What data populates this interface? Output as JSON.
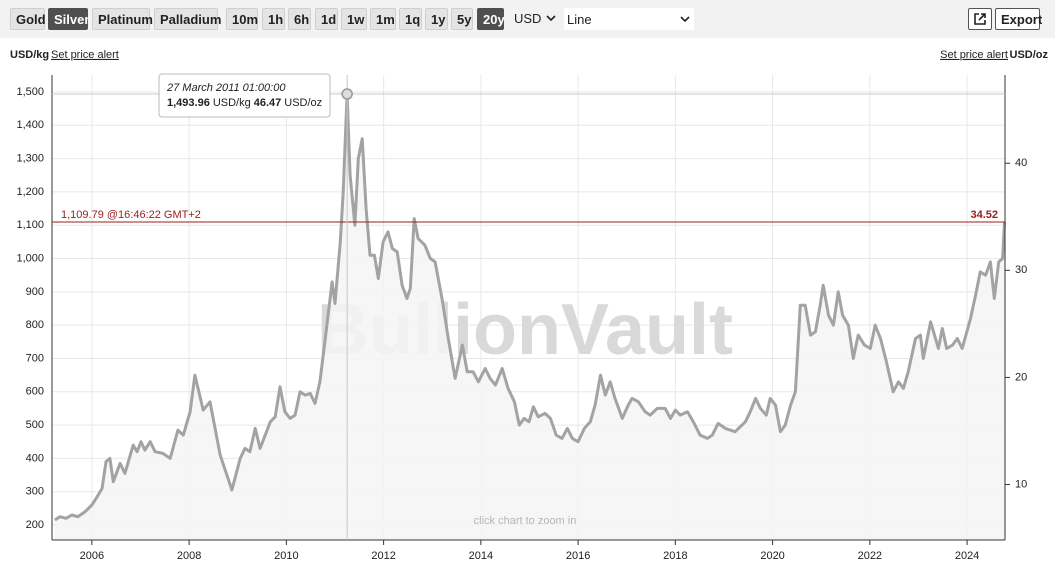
{
  "toolbar": {
    "metals": [
      "Gold",
      "Silver",
      "Platinum",
      "Palladium"
    ],
    "selected_metal": "Silver",
    "ranges": [
      "10m",
      "1h",
      "6h",
      "1d",
      "1w",
      "1m",
      "1q",
      "1y",
      "5y",
      "20y"
    ],
    "selected_range": "20y",
    "currency": "USD",
    "chart_style": "Line",
    "export": "Export"
  },
  "left_unit": "USD/kg",
  "right_unit": "USD/oz",
  "price_alert": "Set price alert",
  "chart_data": {
    "type": "line",
    "x": [
      2005.24,
      2005.34,
      2005.47,
      2005.59,
      2005.71,
      2005.86,
      2006.0,
      2006.11,
      2006.21,
      2006.29,
      2006.37,
      2006.44,
      2006.58,
      2006.68,
      2006.85,
      2006.93,
      2007.01,
      2007.09,
      2007.2,
      2007.3,
      2007.46,
      2007.61,
      2007.77,
      2007.88,
      2008.02,
      2008.12,
      2008.29,
      2008.43,
      2008.64,
      2008.88,
      2009.05,
      2009.15,
      2009.25,
      2009.36,
      2009.46,
      2009.67,
      2009.77,
      2009.87,
      2009.97,
      2010.08,
      2010.18,
      2010.28,
      2010.39,
      2010.49,
      2010.59,
      2010.69,
      2010.8,
      2010.94,
      2011.0,
      2011.11,
      2011.17,
      2011.25,
      2011.31,
      2011.41,
      2011.48,
      2011.56,
      2011.64,
      2011.72,
      2011.81,
      2011.89,
      2011.99,
      2012.09,
      2012.18,
      2012.28,
      2012.38,
      2012.48,
      2012.55,
      2012.63,
      2012.71,
      2012.85,
      2012.96,
      2013.06,
      2013.2,
      2013.33,
      2013.47,
      2013.62,
      2013.72,
      2013.84,
      2013.95,
      2014.09,
      2014.19,
      2014.3,
      2014.44,
      2014.56,
      2014.69,
      2014.79,
      2014.89,
      2014.99,
      2015.08,
      2015.18,
      2015.32,
      2015.43,
      2015.55,
      2015.67,
      2015.78,
      2015.88,
      2016.0,
      2016.13,
      2016.25,
      2016.35,
      2016.46,
      2016.56,
      2016.66,
      2016.76,
      2016.91,
      2017.03,
      2017.11,
      2017.24,
      2017.38,
      2017.48,
      2017.63,
      2017.79,
      2017.9,
      2018.0,
      2018.1,
      2018.25,
      2018.37,
      2018.51,
      2018.66,
      2018.76,
      2018.88,
      2019.03,
      2019.23,
      2019.44,
      2019.54,
      2019.65,
      2019.75,
      2019.87,
      2019.95,
      2020.06,
      2020.16,
      2020.26,
      2020.37,
      2020.47,
      2020.57,
      2020.67,
      2020.78,
      2020.88,
      2020.98,
      2021.04,
      2021.15,
      2021.25,
      2021.35,
      2021.44,
      2021.56,
      2021.66,
      2021.76,
      2021.89,
      2022.01,
      2022.11,
      2022.22,
      2022.34,
      2022.48,
      2022.59,
      2022.69,
      2022.79,
      2022.94,
      2023.04,
      2023.1,
      2023.25,
      2023.35,
      2023.41,
      2023.49,
      2023.58,
      2023.7,
      2023.8,
      2023.9,
      2024.07,
      2024.19,
      2024.27,
      2024.38,
      2024.48,
      2024.56,
      2024.65,
      2024.73,
      2024.77
    ],
    "series": [
      {
        "color": "#a3a3a3",
        "values": [
          215,
          225,
          220,
          230,
          225,
          240,
          260,
          285,
          310,
          390,
          400,
          330,
          385,
          355,
          440,
          420,
          450,
          425,
          450,
          420,
          415,
          400,
          485,
          470,
          540,
          650,
          545,
          570,
          410,
          305,
          400,
          430,
          420,
          490,
          430,
          510,
          525,
          615,
          540,
          520,
          530,
          600,
          590,
          595,
          565,
          630,
          760,
          930,
          865,
          1050,
          1200,
          1493.96,
          1250,
          1100,
          1300,
          1360,
          1150,
          1010,
          1010,
          940,
          1050,
          1080,
          1030,
          1020,
          920,
          880,
          910,
          1120,
          1060,
          1040,
          1000,
          990,
          880,
          760,
          640,
          740,
          660,
          660,
          630,
          670,
          640,
          620,
          670,
          610,
          570,
          500,
          520,
          510,
          555,
          525,
          535,
          520,
          470,
          460,
          490,
          460,
          450,
          490,
          510,
          560,
          650,
          590,
          630,
          580,
          520,
          560,
          580,
          570,
          540,
          530,
          550,
          550,
          520,
          545,
          530,
          540,
          510,
          470,
          460,
          470,
          505,
          490,
          480,
          510,
          540,
          580,
          550,
          530,
          580,
          560,
          480,
          500,
          560,
          600,
          860,
          860,
          770,
          780,
          860,
          920,
          830,
          800,
          900,
          830,
          800,
          700,
          770,
          740,
          730,
          800,
          760,
          690,
          600,
          630,
          610,
          660,
          760,
          770,
          700,
          810,
          760,
          730,
          790,
          730,
          740,
          760,
          730,
          820,
          900,
          960,
          950,
          990,
          880,
          990,
          1000,
          1109.79
        ]
      }
    ],
    "xlim": [
      2005.18,
      2024.78
    ],
    "xticks": [
      2006,
      2008,
      2010,
      2012,
      2014,
      2016,
      2018,
      2020,
      2022,
      2024
    ],
    "ylim": [
      155,
      1551
    ],
    "yticks": [
      200,
      300,
      400,
      500,
      600,
      700,
      800,
      900,
      {
        "value": 1000,
        "label": "1,000"
      },
      {
        "value": 1100,
        "label": "1,100"
      },
      {
        "value": 1200,
        "label": "1,200"
      },
      {
        "value": 1300,
        "label": "1,300"
      },
      {
        "value": 1400,
        "label": "1,400"
      },
      {
        "value": 1500,
        "label": "1,500"
      }
    ],
    "y2lim": [
      4.82,
      48.24
    ],
    "y2ticks": [
      10,
      20,
      30,
      40
    ],
    "grid": true,
    "watermark": "BullionVault",
    "hint": "click chart to zoom in",
    "hover": {
      "x": 2011.25,
      "value": 1493.96,
      "value_label": "1,493.96",
      "oz_label": "46.47",
      "date": "27 March 2011 01:00:00"
    },
    "current": {
      "value": 1109.79,
      "label": "1,109.79 @16:46:22 GMT+2",
      "value_oz": 34.52,
      "color": "#9b1c1c"
    }
  }
}
